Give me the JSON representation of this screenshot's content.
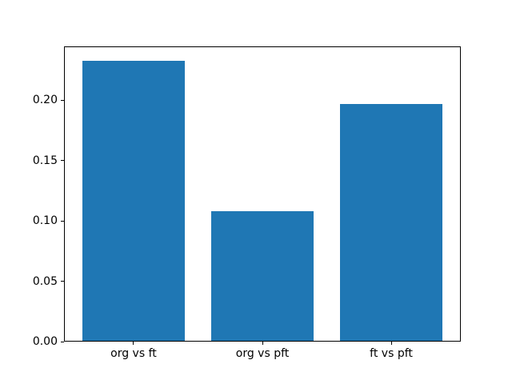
{
  "figure": {
    "background": "#ffffff"
  },
  "chart_data": {
    "type": "bar",
    "categories": [
      "org vs ft",
      "org vs pft",
      "ft vs pft"
    ],
    "values": [
      0.233,
      0.108,
      0.197
    ],
    "title": "",
    "xlabel": "",
    "ylabel": "",
    "ylim": [
      0,
      0.245
    ],
    "ytick_labels": [
      "0.00",
      "0.05",
      "0.10",
      "0.15",
      "0.20"
    ],
    "ytick_values": [
      0.0,
      0.05,
      0.1,
      0.15,
      0.2
    ],
    "bar_color": "#1f77b4",
    "bar_width_fraction": 0.8,
    "grid": false,
    "legend": null,
    "spine_color": "#000000",
    "text_color": "#000000"
  }
}
